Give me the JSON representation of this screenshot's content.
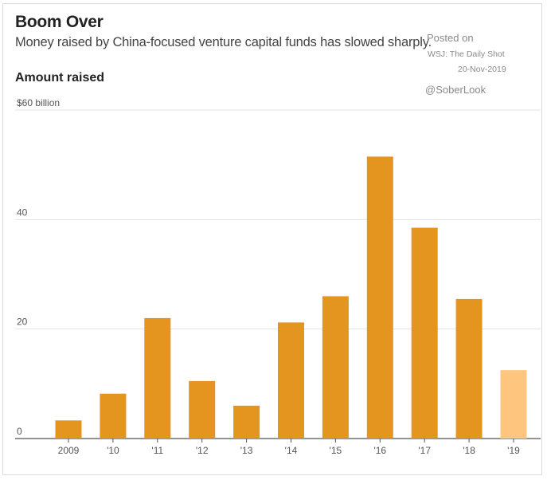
{
  "header": {
    "title": "Boom Over",
    "subtitle": "Money raised by China-focused venture capital funds has slowed sharply.",
    "panel_label": "Amount raised"
  },
  "watermark": {
    "posted": "Posted on",
    "source": "WSJ: The Daily Shot",
    "date": "20-Nov-2019",
    "handle": "@SoberLook"
  },
  "chart_data": {
    "type": "bar",
    "title": "Amount raised",
    "categories": [
      "2009",
      "'10",
      "'11",
      "'12",
      "'13",
      "'14",
      "'15",
      "'16",
      "'17",
      "'18",
      "'19"
    ],
    "values": [
      3.3,
      8.2,
      22.0,
      10.5,
      6.0,
      21.2,
      26.0,
      51.5,
      38.5,
      25.5,
      12.5
    ],
    "ylim": [
      0,
      60
    ],
    "yticks": [
      0,
      20,
      40,
      60
    ],
    "ytick_labels": [
      "0",
      "20",
      "40",
      "$60 billion"
    ],
    "grid": true,
    "colors": {
      "bar": "#E39520",
      "highlight": "#FDC57D"
    },
    "highlight_index": 10
  }
}
